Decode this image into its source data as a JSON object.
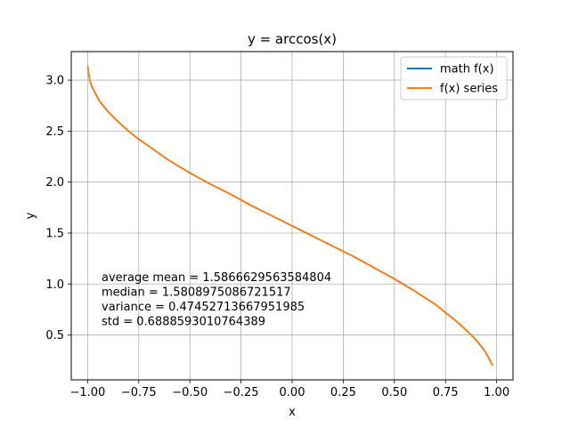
{
  "chart_data": {
    "type": "line",
    "title": "y = arccos(x)",
    "xlabel": "x",
    "ylabel": "y",
    "xlim": [
      -1.08,
      1.08
    ],
    "ylim": [
      0.06,
      3.28
    ],
    "x_ticks": [
      -1.0,
      -0.75,
      -0.5,
      -0.25,
      0.0,
      0.25,
      0.5,
      0.75,
      1.0
    ],
    "x_tick_labels": [
      "−1.00",
      "−0.75",
      "−0.50",
      "−0.25",
      "0.00",
      "0.25",
      "0.50",
      "0.75",
      "1.00"
    ],
    "y_ticks": [
      0.5,
      1.0,
      1.5,
      2.0,
      2.5,
      3.0
    ],
    "y_tick_labels": [
      "0.5",
      "1.0",
      "1.5",
      "2.0",
      "2.5",
      "3.0"
    ],
    "grid": true,
    "legend_position": "top-right",
    "series": [
      {
        "name": "math f(x)",
        "color": "#1f77b4",
        "x": [
          -0.99,
          -0.98,
          -0.96,
          -0.94,
          -0.92,
          -0.9,
          -0.85,
          -0.8,
          -0.75,
          -0.7,
          -0.6,
          -0.5,
          -0.4,
          -0.3,
          -0.2,
          -0.1,
          0.0,
          0.1,
          0.2,
          0.3,
          0.4,
          0.5,
          0.6,
          0.7,
          0.75,
          0.8,
          0.85,
          0.9,
          0.92,
          0.94,
          0.96,
          0.98
        ],
        "y": [
          3.0,
          2.94,
          2.86,
          2.79,
          2.74,
          2.69,
          2.59,
          2.5,
          2.42,
          2.35,
          2.21,
          2.09,
          1.98,
          1.88,
          1.77,
          1.67,
          1.57,
          1.47,
          1.37,
          1.27,
          1.16,
          1.05,
          0.93,
          0.8,
          0.72,
          0.64,
          0.55,
          0.45,
          0.4,
          0.35,
          0.28,
          0.2
        ]
      },
      {
        "name": "f(x) series",
        "color": "#ff7f0e",
        "x": [
          -1.0,
          -0.99,
          -0.98,
          -0.96,
          -0.94,
          -0.92,
          -0.9,
          -0.85,
          -0.8,
          -0.75,
          -0.7,
          -0.6,
          -0.5,
          -0.4,
          -0.3,
          -0.2,
          -0.1,
          0.0,
          0.1,
          0.2,
          0.3,
          0.4,
          0.5,
          0.6,
          0.7,
          0.75,
          0.8,
          0.85,
          0.9,
          0.92,
          0.94,
          0.96,
          0.98
        ],
        "y": [
          3.14,
          3.0,
          2.94,
          2.86,
          2.79,
          2.74,
          2.69,
          2.59,
          2.5,
          2.42,
          2.35,
          2.21,
          2.09,
          1.98,
          1.88,
          1.77,
          1.67,
          1.57,
          1.47,
          1.37,
          1.27,
          1.16,
          1.05,
          0.93,
          0.8,
          0.72,
          0.64,
          0.55,
          0.45,
          0.4,
          0.35,
          0.28,
          0.2
        ]
      }
    ],
    "annotations": [
      "average mean = 1.5866629563584804",
      "median = 1.5808975086721517",
      "variance = 0.47452713667951985",
      "std = 0.6888593010764389"
    ]
  }
}
